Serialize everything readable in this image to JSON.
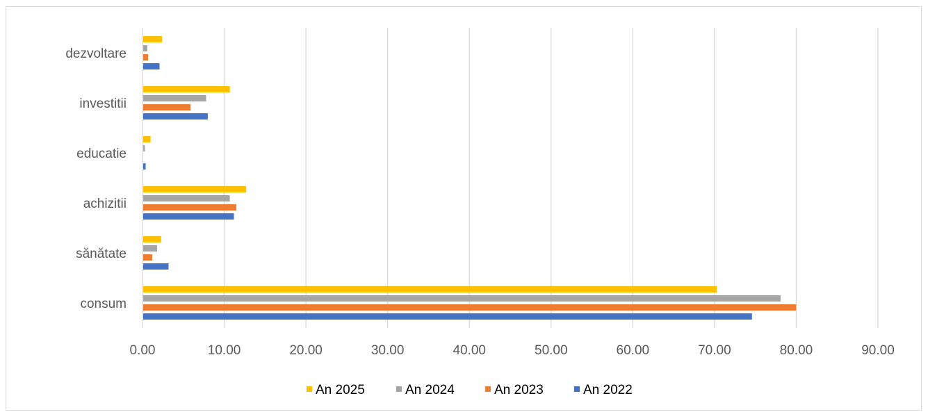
{
  "chart_data": {
    "type": "bar",
    "orientation": "horizontal",
    "categories": [
      "consum",
      "sănătate",
      "achizitii",
      "educatie",
      "investitii",
      "dezvoltare"
    ],
    "series": [
      {
        "name": "An 2022",
        "color": "#4472C4",
        "values": [
          74.5,
          3.1,
          11.1,
          0.3,
          7.9,
          2.0
        ]
      },
      {
        "name": "An 2023",
        "color": "#ED7D31",
        "values": [
          79.9,
          1.1,
          11.4,
          0.0,
          5.8,
          0.6
        ]
      },
      {
        "name": "An 2024",
        "color": "#A5A5A5",
        "values": [
          78.0,
          1.7,
          10.6,
          0.2,
          7.7,
          0.5
        ]
      },
      {
        "name": "An 2025",
        "color": "#FFC000",
        "values": [
          70.2,
          2.2,
          12.6,
          0.9,
          10.6,
          2.3
        ]
      }
    ],
    "xlim": [
      0,
      90
    ],
    "x_ticks": [
      "0.00",
      "10.00",
      "20.00",
      "30.00",
      "40.00",
      "50.00",
      "60.00",
      "70.00",
      "80.00",
      "90.00"
    ],
    "legend_order": [
      "An 2025",
      "An 2024",
      "An 2023",
      "An 2022"
    ],
    "legend_position": "bottom",
    "grid": "vertical"
  }
}
